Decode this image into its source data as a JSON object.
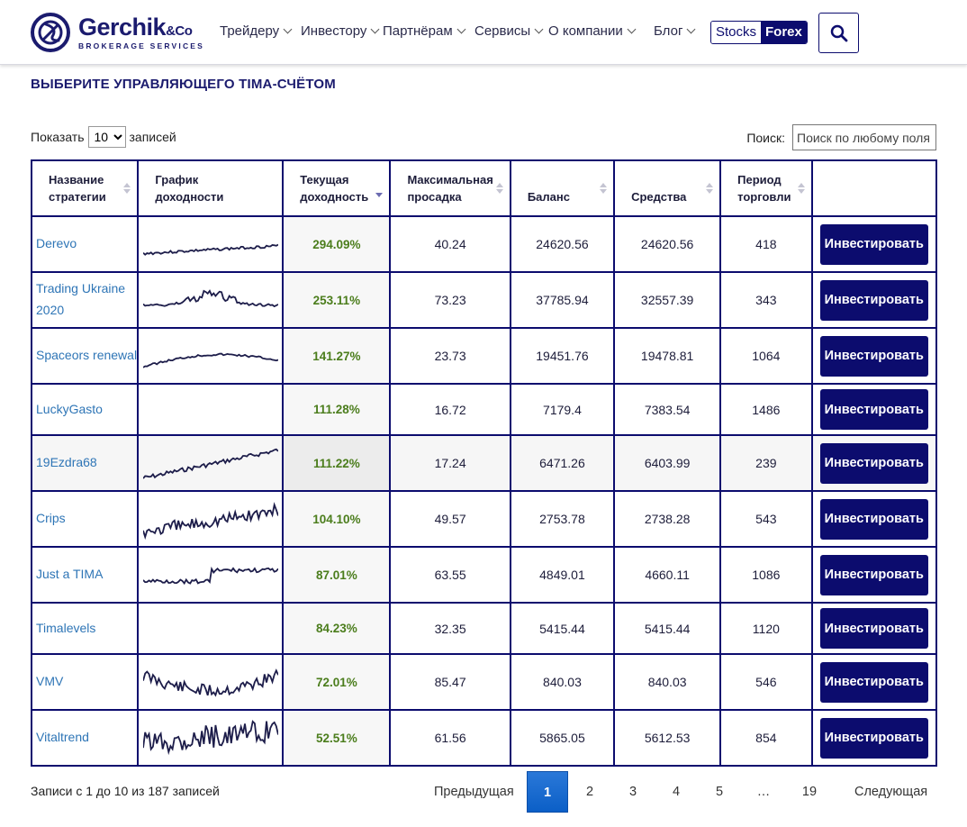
{
  "brand": {
    "name": "Gerchik",
    "amp": "&Co",
    "subtitle": "BROKERAGE SERVICES"
  },
  "nav": {
    "items": [
      "Трейдеру",
      "Инвестору",
      "Партнёрам",
      "Сервисы",
      "О компании",
      "Блог"
    ],
    "market_options": [
      "Stocks",
      "Forex"
    ],
    "market_selected": "Forex"
  },
  "page_title": "ВЫБЕРИТЕ УПРАВЛЯЮЩЕГО TIMA-СЧЁТОМ",
  "controls": {
    "show_label": "Показать",
    "page_size": "10",
    "entries_label": "записей",
    "search_label": "Поиск:",
    "search_placeholder": "Поиск по любому поля"
  },
  "table": {
    "columns": [
      {
        "label1": "Название",
        "label2": "стратегии"
      },
      {
        "label1": "График",
        "label2": "доходности"
      },
      {
        "label1": "Текущая",
        "label2": "доходность"
      },
      {
        "label1": "Максимальная",
        "label2": "просадка"
      },
      {
        "label1": "",
        "label2": "Баланс"
      },
      {
        "label1": "",
        "label2": "Средства"
      },
      {
        "label1": "Период",
        "label2": "торговли"
      },
      {
        "label1": "",
        "label2": ""
      }
    ],
    "invest_label": "Инвестировать",
    "rows": [
      {
        "name": "Derevo",
        "yield": "294.09%",
        "drawdown": "40.24",
        "balance": "24620.56",
        "equity": "24620.56",
        "period": "418"
      },
      {
        "name": "Trading Ukraine 2020",
        "yield": "253.11%",
        "drawdown": "73.23",
        "balance": "37785.94",
        "equity": "32557.39",
        "period": "343"
      },
      {
        "name": "Spaceors renewal",
        "yield": "141.27%",
        "drawdown": "23.73",
        "balance": "19451.76",
        "equity": "19478.81",
        "period": "1064"
      },
      {
        "name": "LuckyGasto",
        "yield": "111.28%",
        "drawdown": "16.72",
        "balance": "7179.4",
        "equity": "7383.54",
        "period": "1486"
      },
      {
        "name": "19Ezdra68",
        "yield": "111.22%",
        "drawdown": "17.24",
        "balance": "6471.26",
        "equity": "6403.99",
        "period": "239"
      },
      {
        "name": "Crips",
        "yield": "104.10%",
        "drawdown": "49.57",
        "balance": "2753.78",
        "equity": "2738.28",
        "period": "543"
      },
      {
        "name": "Just a TIMA",
        "yield": "87.01%",
        "drawdown": "63.55",
        "balance": "4849.01",
        "equity": "4660.11",
        "period": "1086"
      },
      {
        "name": "Timalevels",
        "yield": "84.23%",
        "drawdown": "32.35",
        "balance": "5415.44",
        "equity": "5415.44",
        "period": "1120"
      },
      {
        "name": "VMV",
        "yield": "72.01%",
        "drawdown": "85.47",
        "balance": "840.03",
        "equity": "840.03",
        "period": "546"
      },
      {
        "name": "Vitaltrend",
        "yield": "52.51%",
        "drawdown": "61.56",
        "balance": "5865.05",
        "equity": "5612.53",
        "period": "854"
      }
    ]
  },
  "footer": {
    "info": "Записи с 1 до 10 из 187 записей",
    "prev": "Предыдущая",
    "pages": [
      "1",
      "2",
      "3",
      "4",
      "5",
      "…",
      "19"
    ],
    "next": "Следующая",
    "current_page": "1"
  },
  "colors": {
    "brand": "#0c0c6e",
    "link": "#2e75b6",
    "yield": "#4b7d1c",
    "active_page": "#1a6fd3"
  }
}
